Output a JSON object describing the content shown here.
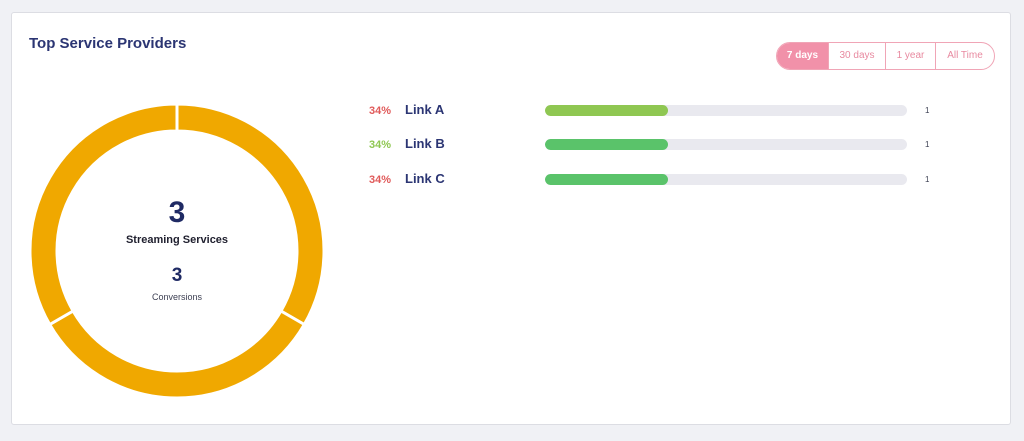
{
  "header": {
    "title": "Top Service Providers"
  },
  "time_ranges": [
    {
      "label": "7 days",
      "active": true
    },
    {
      "label": "30 days",
      "active": false
    },
    {
      "label": "1 year",
      "active": false
    },
    {
      "label": "All Time",
      "active": false
    }
  ],
  "donut": {
    "total": "3",
    "label": "Streaming Services",
    "conversions_value": "3",
    "conversions_label": "Conversions",
    "segments": [
      1,
      1,
      1
    ],
    "color": "#f0a800"
  },
  "links": [
    {
      "percent": "34%",
      "name": "Link A",
      "count": "1",
      "fraction": 0.34,
      "percent_color": "#e05a5a",
      "bar_color": "#8fc752"
    },
    {
      "percent": "34%",
      "name": "Link B",
      "count": "1",
      "fraction": 0.34,
      "percent_color": "#8fc752",
      "bar_color": "#5ac36a"
    },
    {
      "percent": "34%",
      "name": "Link C",
      "count": "1",
      "fraction": 0.34,
      "percent_color": "#e05a5a",
      "bar_color": "#5ac36a"
    }
  ]
}
